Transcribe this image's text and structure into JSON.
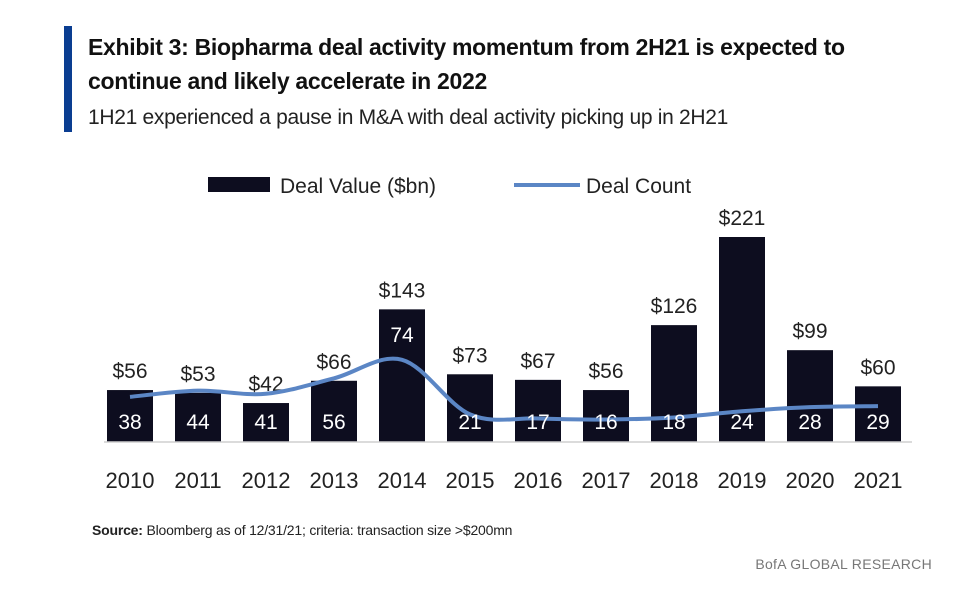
{
  "header": {
    "title": "Exhibit 3: Biopharma deal activity momentum from 2H21 is expected to continue and likely accelerate in 2022",
    "subtitle": "1H21 experienced a pause in M&A with deal activity picking up in 2H21",
    "accent_color": "#0a3d91"
  },
  "chart_data": {
    "type": "bar",
    "categories": [
      "2010",
      "2011",
      "2012",
      "2013",
      "2014",
      "2015",
      "2016",
      "2017",
      "2018",
      "2019",
      "2020",
      "2021"
    ],
    "series": [
      {
        "name": "Deal  Value ($bn)",
        "type": "bar",
        "values": [
          56,
          53,
          42,
          66,
          143,
          73,
          67,
          56,
          126,
          221,
          99,
          60
        ],
        "labels": [
          "$56",
          "$53",
          "$42",
          "$66",
          "$143",
          "$73",
          "$67",
          "$56",
          "$126",
          "$221",
          "$99",
          "$60"
        ],
        "color": "#0d0d1f"
      },
      {
        "name": "Deal Count",
        "type": "line",
        "values": [
          38,
          44,
          41,
          56,
          74,
          21,
          17,
          16,
          18,
          24,
          28,
          29
        ],
        "labels": [
          "38",
          "44",
          "41",
          "56",
          "74",
          "21",
          "17",
          "16",
          "18",
          "24",
          "28",
          "29"
        ],
        "color": "#5b86c5"
      }
    ],
    "ylim": [
      0,
      221
    ],
    "legend_position": "top",
    "grid": false
  },
  "footer": {
    "source_label": "Source:",
    "source_text": "Bloomberg as of 12/31/21;  criteria: transaction size >$200mn",
    "brand": "BofA GLOBAL RESEARCH"
  }
}
